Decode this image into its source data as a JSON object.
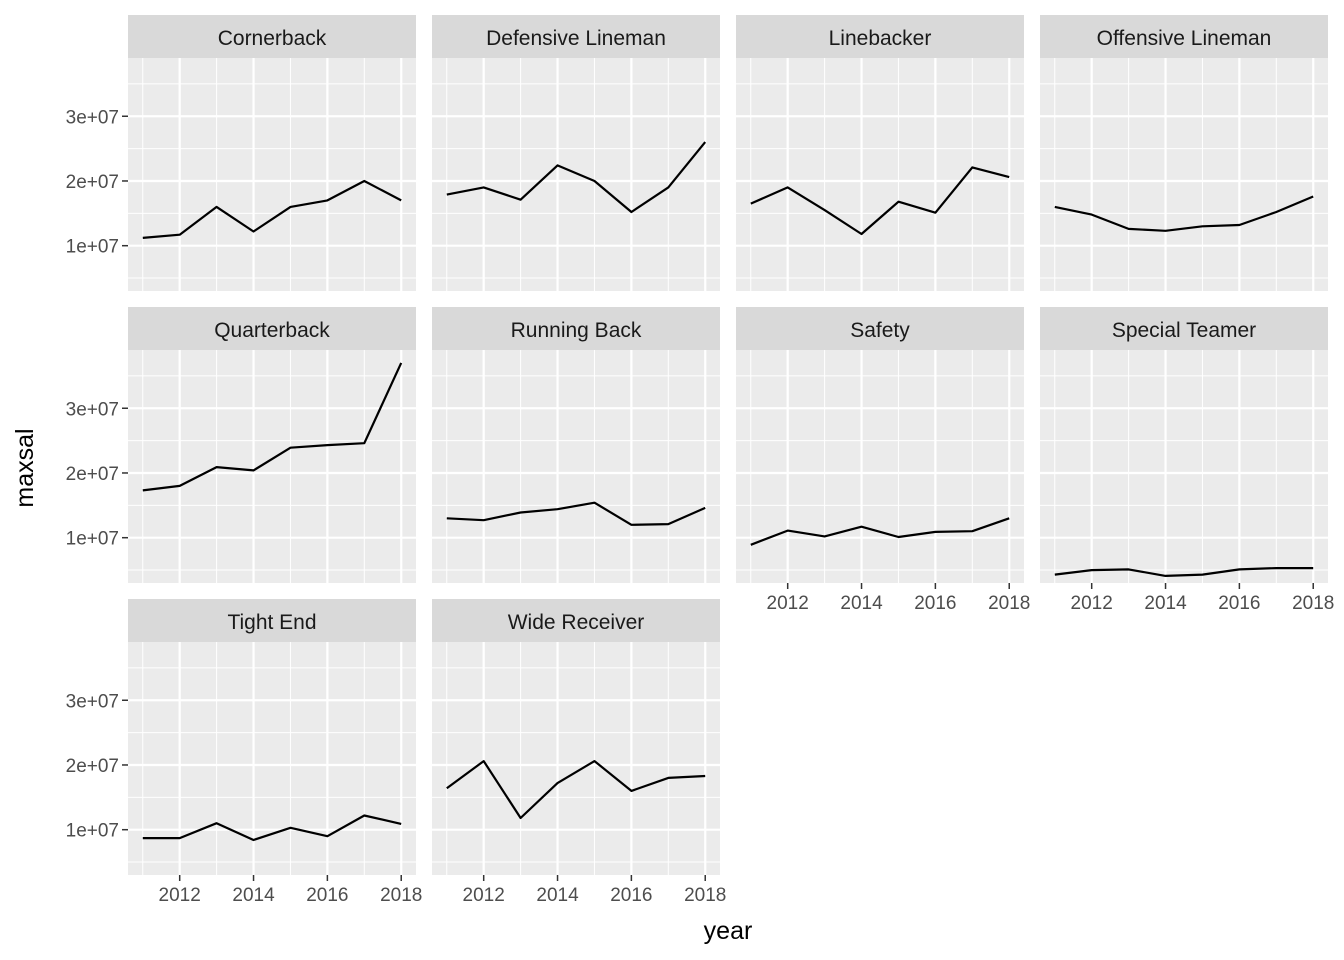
{
  "chart_data": {
    "type": "line",
    "facet_layout": "wrap",
    "xlabel": "year",
    "ylabel": "maxsal",
    "x": [
      2011,
      2012,
      2013,
      2014,
      2015,
      2016,
      2017,
      2018
    ],
    "x_ticks": [
      2012,
      2014,
      2016,
      2018
    ],
    "y_ticks": [
      10000000,
      20000000,
      30000000
    ],
    "y_tick_labels": [
      "1e+07",
      "2e+07",
      "3e+07"
    ],
    "xlim": [
      2010.6,
      2018.4
    ],
    "ylim": [
      3000000,
      39000000
    ],
    "grid": true,
    "colors": {
      "panel_bg": "#ebebeb",
      "strip_bg": "#d9d9d9",
      "grid_major": "#ffffff",
      "line": "#000000",
      "tick": "#333333"
    },
    "panels": [
      {
        "name": "Cornerback",
        "values": [
          11200000,
          11700000,
          16000000,
          12200000,
          16000000,
          17000000,
          20000000,
          17000000
        ]
      },
      {
        "name": "Defensive Lineman",
        "values": [
          17900000,
          19000000,
          17100000,
          22400000,
          20000000,
          15200000,
          19000000,
          26000000
        ]
      },
      {
        "name": "Linebacker",
        "values": [
          16500000,
          19000000,
          15500000,
          11800000,
          16800000,
          15100000,
          22100000,
          20600000
        ]
      },
      {
        "name": "Offensive Lineman",
        "values": [
          16000000,
          14800000,
          12600000,
          12300000,
          13000000,
          13200000,
          15200000,
          17600000
        ]
      },
      {
        "name": "Quarterback",
        "values": [
          17300000,
          18000000,
          20900000,
          20400000,
          23900000,
          24300000,
          24600000,
          37000000
        ]
      },
      {
        "name": "Running Back",
        "values": [
          13000000,
          12700000,
          13900000,
          14400000,
          15400000,
          12000000,
          12100000,
          14600000
        ]
      },
      {
        "name": "Safety",
        "values": [
          8900000,
          11100000,
          10200000,
          11700000,
          10100000,
          10900000,
          11000000,
          13000000
        ]
      },
      {
        "name": "Special Teamer",
        "values": [
          4300000,
          5000000,
          5100000,
          4100000,
          4300000,
          5100000,
          5300000,
          5300000
        ]
      },
      {
        "name": "Tight End",
        "values": [
          8700000,
          8700000,
          11000000,
          8400000,
          10300000,
          9000000,
          12200000,
          10900000
        ]
      },
      {
        "name": "Wide Receiver",
        "values": [
          16400000,
          20600000,
          11800000,
          17200000,
          20600000,
          16000000,
          18000000,
          18300000
        ]
      }
    ]
  }
}
